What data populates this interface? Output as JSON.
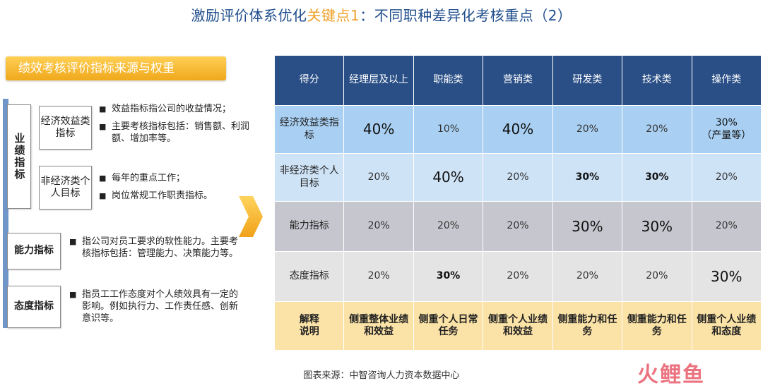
{
  "title": {
    "prefix": "激励评价体系优化",
    "highlight": "关键点1",
    "suffix": "：不同职种差异化考核重点（2）"
  },
  "left": {
    "banner": "绩效考核评价指标来源与权重",
    "performance_label": "业绩指标",
    "econ_label": "经济效益类指标",
    "econ_bullets": [
      "效益指标指公司的收益情况；",
      "主要考核指标包括：销售额、利润额、增加率等。"
    ],
    "nonecon_label": "非经济类个人目标",
    "nonecon_bullets": [
      "每年的重点工作；",
      "岗位常规工作职责指标。"
    ],
    "ability_label": "能力指标",
    "ability_bullet": "指公司对员工要求的软性能力。主要考核指标包括：管理能力、决策能力等。",
    "attitude_label": "态度指标",
    "attitude_bullet": "指员工工作态度对个人绩效具有一定的影响。例如执行力、工作责任感、创新意识等。"
  },
  "table": {
    "headers": [
      "得分",
      "经理层及以上",
      "职能类",
      "营销类",
      "研发类",
      "技术类",
      "操作类"
    ],
    "rows": [
      {
        "label": "经济效益类指标",
        "cells": [
          "40%",
          "10%",
          "40%",
          "20%",
          "20%",
          "30%\n（产量等）"
        ]
      },
      {
        "label": "非经济类个人目标",
        "cells": [
          "20%",
          "40%",
          "20%",
          "30%",
          "30%",
          "20%"
        ]
      },
      {
        "label": "能力指标",
        "cells": [
          "20%",
          "20%",
          "20%",
          "30%",
          "30%",
          "20%"
        ]
      },
      {
        "label": "态度指标",
        "cells": [
          "20%",
          "30%",
          "20%",
          "20%",
          "20%",
          "30%"
        ]
      },
      {
        "label": "解释说明",
        "cells": [
          "侧重整体业绩和效益",
          "侧重个人日常任务",
          "侧重个人业绩和效益",
          "侧重能力和任务",
          "侧重能力和任务",
          "侧重个人业绩和态度"
        ]
      }
    ]
  },
  "source": "图表来源：中智咨询人力资本数据中心",
  "logo": "火鲤鱼",
  "colors": {
    "header_bg": "#2a4f86",
    "econ_bg": "#a9d0f3",
    "nonecon_bg": "#cfe3f7",
    "ability_bg": "#c6c6cf",
    "attitude_bg": "#e4e4e4",
    "note_bg": "#fbe3a7",
    "banner": "#f0a91c",
    "title": "#1f4e8c"
  }
}
